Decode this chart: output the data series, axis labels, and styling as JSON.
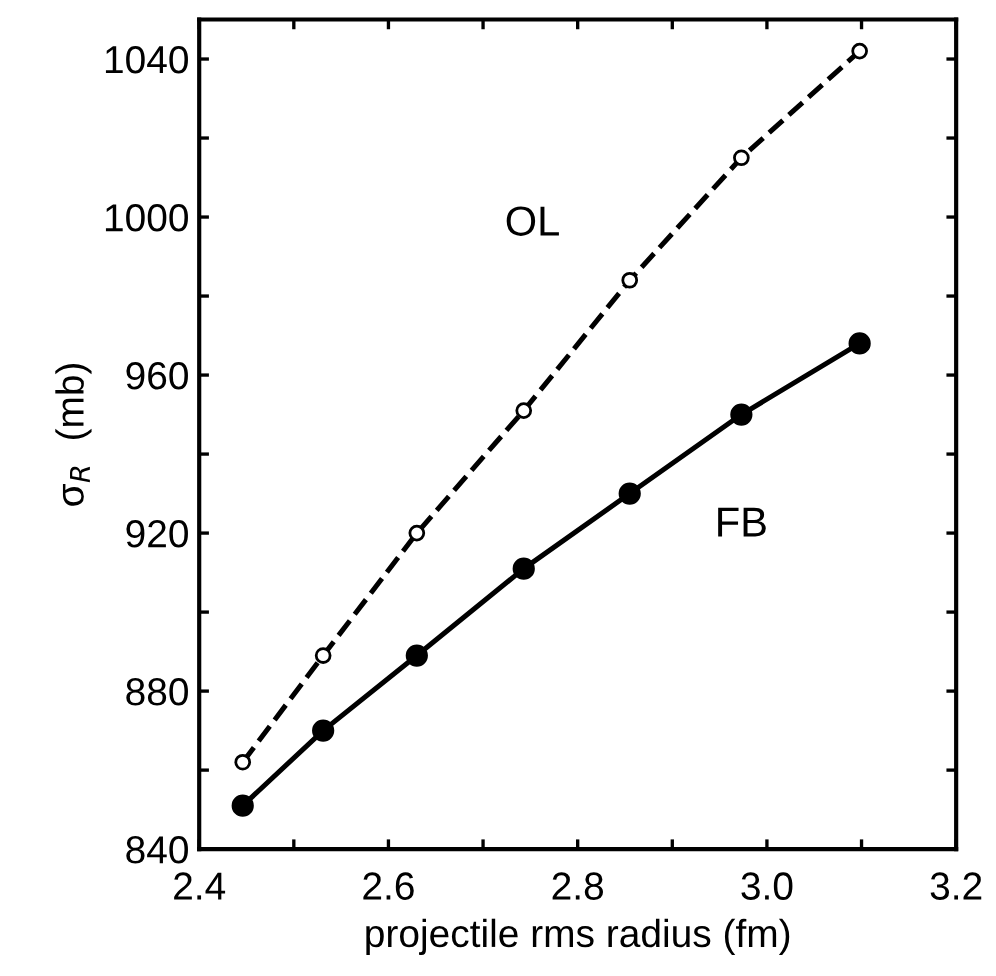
{
  "chart_data": {
    "type": "line",
    "xlabel": "projectile rms radius (fm)",
    "ylabel": "σ$_{R}$  (mb)",
    "x": [
      2.446,
      2.531,
      2.63,
      2.743,
      2.855,
      2.973,
      3.098
    ],
    "series": [
      {
        "name": "OL",
        "color": "#000000",
        "values": [
          862,
          889,
          920,
          951,
          984,
          1015,
          1042
        ],
        "line_style": "dashed",
        "marker": "open circle"
      },
      {
        "name": "FB",
        "color": "#000000",
        "values": [
          851,
          870,
          889,
          911,
          930,
          950,
          968
        ],
        "line_style": "solid",
        "marker": "circle"
      }
    ],
    "xlim": [
      2.4,
      3.2
    ],
    "xticks": [
      2.4,
      {
        "value": 2.5,
        "label": null
      },
      2.6,
      {
        "value": 2.7,
        "label": null
      },
      2.8,
      {
        "value": 2.9,
        "label": null
      },
      {
        "value": 3.0,
        "label": "3.0"
      },
      {
        "value": 3.1,
        "label": null
      },
      3.2
    ],
    "ylim": [
      840,
      1050
    ],
    "yticks": [
      840,
      {
        "value": 860,
        "label": null
      },
      880,
      {
        "value": 900,
        "label": null
      },
      920,
      {
        "value": 940,
        "label": null
      },
      960,
      {
        "value": 980,
        "label": null
      },
      1000,
      {
        "value": 1020,
        "label": null
      },
      1040
    ],
    "grid": false,
    "legend": false
  }
}
